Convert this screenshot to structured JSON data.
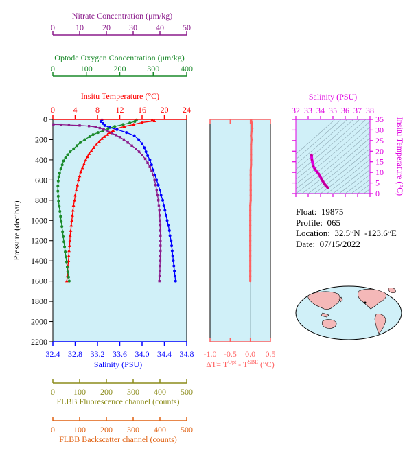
{
  "float_info": {
    "float": "Float:  19875",
    "profile": "Profile:  065",
    "location": "Location:  32.5°N  -123.6°E",
    "date": "Date:  07/15/2022"
  },
  "colors": {
    "nitrate": "#8b1a8b",
    "oxygen": "#1a8a2a",
    "temperature": "#ff0000",
    "salinity": "#0000ff",
    "fluorescence": "#8b8b1a",
    "backscatter": "#e06010",
    "delta_t": "#ff6060",
    "ts": "#e000e0",
    "plot_bg": "#d0f0f8"
  },
  "chart_data": [
    {
      "type": "line",
      "panel": "profile",
      "ylabel": "Pressure (decibar)",
      "ylim": [
        0,
        2200
      ],
      "yticks": [
        0,
        200,
        400,
        600,
        800,
        1000,
        1200,
        1400,
        1600,
        1800,
        2000,
        2200
      ],
      "axes": {
        "nitrate": {
          "label": "Nitrate Concentration (μm/kg)",
          "range": [
            0,
            50
          ],
          "ticks": [
            0,
            10,
            20,
            30,
            40,
            50
          ]
        },
        "oxygen": {
          "label": "Optode Oxygen Concentration (μm/kg)",
          "range": [
            0,
            400
          ],
          "ticks": [
            0,
            100,
            200,
            300,
            400
          ]
        },
        "temperature": {
          "label": "Insitu Temperature (°C)",
          "range": [
            0,
            24
          ],
          "ticks": [
            0,
            4,
            8,
            12,
            16,
            20,
            24
          ]
        },
        "salinity": {
          "label": "Salinity (PSU)",
          "range": [
            32.4,
            34.8
          ],
          "ticks": [
            "32.4",
            "32.8",
            "33.2",
            "33.6",
            "34.0",
            "34.4",
            "34.8"
          ]
        },
        "fluorescence": {
          "label": "FLBB Fluorescence channel (counts)",
          "range": [
            0,
            500
          ],
          "ticks": [
            0,
            100,
            200,
            300,
            400,
            500
          ]
        },
        "backscatter": {
          "label": "FLBB Backscatter channel (counts)",
          "range": [
            0,
            500
          ],
          "ticks": [
            0,
            100,
            200,
            300,
            400,
            500
          ]
        }
      },
      "series": [
        {
          "key": "temperature",
          "marker": "triangle",
          "points": [
            [
              17.8,
              5
            ],
            [
              18.2,
              15
            ],
            [
              16.0,
              30
            ],
            [
              14.5,
              50
            ],
            [
              12.8,
              70
            ],
            [
              11.5,
              90
            ],
            [
              10.8,
              110
            ],
            [
              10.2,
              130
            ],
            [
              9.8,
              150
            ],
            [
              9.2,
              170
            ],
            [
              8.8,
              190
            ],
            [
              8.3,
              220
            ],
            [
              7.8,
              250
            ],
            [
              7.3,
              280
            ],
            [
              6.9,
              310
            ],
            [
              6.5,
              340
            ],
            [
              6.2,
              370
            ],
            [
              5.9,
              400
            ],
            [
              5.6,
              440
            ],
            [
              5.3,
              480
            ],
            [
              5.0,
              520
            ],
            [
              4.8,
              560
            ],
            [
              4.6,
              600
            ],
            [
              4.4,
              650
            ],
            [
              4.2,
              700
            ],
            [
              4.0,
              750
            ],
            [
              3.9,
              800
            ],
            [
              3.7,
              850
            ],
            [
              3.6,
              900
            ],
            [
              3.5,
              950
            ],
            [
              3.4,
              1000
            ],
            [
              3.3,
              1050
            ],
            [
              3.2,
              1100
            ],
            [
              3.1,
              1150
            ],
            [
              3.05,
              1200
            ],
            [
              3.0,
              1250
            ],
            [
              2.9,
              1300
            ],
            [
              2.85,
              1350
            ],
            [
              2.8,
              1400
            ],
            [
              2.7,
              1450
            ],
            [
              2.65,
              1500
            ],
            [
              2.6,
              1550
            ],
            [
              2.5,
              1600
            ]
          ]
        },
        {
          "key": "salinity",
          "marker": "circle",
          "points": [
            [
              33.28,
              5
            ],
            [
              33.26,
              20
            ],
            [
              33.3,
              40
            ],
            [
              33.33,
              60
            ],
            [
              33.42,
              80
            ],
            [
              33.55,
              100
            ],
            [
              33.72,
              130
            ],
            [
              33.86,
              160
            ],
            [
              33.94,
              200
            ],
            [
              34.0,
              240
            ],
            [
              34.04,
              280
            ],
            [
              34.07,
              320
            ],
            [
              34.1,
              360
            ],
            [
              34.14,
              400
            ],
            [
              34.17,
              450
            ],
            [
              34.2,
              500
            ],
            [
              34.23,
              550
            ],
            [
              34.26,
              600
            ],
            [
              34.29,
              650
            ],
            [
              34.32,
              700
            ],
            [
              34.34,
              750
            ],
            [
              34.37,
              800
            ],
            [
              34.39,
              850
            ],
            [
              34.41,
              900
            ],
            [
              34.43,
              950
            ],
            [
              34.45,
              1000
            ],
            [
              34.47,
              1050
            ],
            [
              34.49,
              1100
            ],
            [
              34.5,
              1150
            ],
            [
              34.52,
              1200
            ],
            [
              34.53,
              1250
            ],
            [
              34.54,
              1300
            ],
            [
              34.55,
              1350
            ],
            [
              34.56,
              1400
            ],
            [
              34.57,
              1450
            ],
            [
              34.58,
              1500
            ],
            [
              34.59,
              1550
            ],
            [
              34.6,
              1600
            ]
          ]
        },
        {
          "key": "oxygen",
          "marker": "circle",
          "points": [
            [
              250,
              5
            ],
            [
              245,
              20
            ],
            [
              230,
              35
            ],
            [
              210,
              50
            ],
            [
              185,
              70
            ],
            [
              165,
              90
            ],
            [
              150,
              110
            ],
            [
              135,
              130
            ],
            [
              120,
              150
            ],
            [
              110,
              170
            ],
            [
              95,
              200
            ],
            [
              82,
              230
            ],
            [
              72,
              260
            ],
            [
              62,
              290
            ],
            [
              52,
              320
            ],
            [
              44,
              350
            ],
            [
              38,
              380
            ],
            [
              32,
              410
            ],
            [
              28,
              450
            ],
            [
              24,
              490
            ],
            [
              20,
              530
            ],
            [
              18,
              570
            ],
            [
              16,
              610
            ],
            [
              15,
              660
            ],
            [
              15,
              710
            ],
            [
              16,
              760
            ],
            [
              17,
              810
            ],
            [
              19,
              860
            ],
            [
              21,
              910
            ],
            [
              23,
              960
            ],
            [
              25,
              1010
            ],
            [
              27,
              1060
            ],
            [
              29,
              1110
            ],
            [
              31,
              1160
            ],
            [
              33,
              1210
            ],
            [
              35,
              1260
            ],
            [
              37,
              1310
            ],
            [
              39,
              1360
            ],
            [
              41,
              1410
            ],
            [
              43,
              1460
            ],
            [
              45,
              1510
            ],
            [
              47,
              1560
            ],
            [
              49,
              1600
            ]
          ]
        },
        {
          "key": "nitrate",
          "marker": "square",
          "points": [
            [
              0.2,
              50
            ],
            [
              3.0,
              52
            ],
            [
              6.0,
              55
            ],
            [
              10.0,
              60
            ],
            [
              13.5,
              66
            ],
            [
              16.0,
              75
            ],
            [
              17.5,
              85
            ],
            [
              19.0,
              100
            ],
            [
              20.5,
              115
            ],
            [
              22.0,
              135
            ],
            [
              23.5,
              155
            ],
            [
              25.0,
              175
            ],
            [
              26.5,
              200
            ],
            [
              28.0,
              230
            ],
            [
              29.5,
              260
            ],
            [
              31.0,
              290
            ],
            [
              32.2,
              320
            ],
            [
              33.4,
              355
            ],
            [
              34.5,
              390
            ],
            [
              35.4,
              430
            ],
            [
              36.2,
              470
            ],
            [
              36.9,
              510
            ],
            [
              37.5,
              550
            ],
            [
              38.0,
              600
            ],
            [
              38.4,
              650
            ],
            [
              38.8,
              700
            ],
            [
              39.1,
              750
            ],
            [
              39.4,
              800
            ],
            [
              39.6,
              850
            ],
            [
              39.8,
              900
            ],
            [
              39.9,
              950
            ],
            [
              40.0,
              1000
            ],
            [
              40.1,
              1050
            ],
            [
              40.1,
              1100
            ],
            [
              40.2,
              1150
            ],
            [
              40.2,
              1200
            ],
            [
              40.2,
              1250
            ],
            [
              40.2,
              1300
            ],
            [
              40.1,
              1350
            ],
            [
              40.1,
              1400
            ],
            [
              40.0,
              1450
            ],
            [
              40.0,
              1500
            ],
            [
              39.9,
              1550
            ],
            [
              39.8,
              1600
            ]
          ]
        }
      ]
    },
    {
      "type": "scatter",
      "panel": "delta_t",
      "xlabel": "ΔT= T^Opt - T^SBE (°C)",
      "xlim": [
        -1.0,
        0.5
      ],
      "xticks": [
        "-1.0",
        "-0.5",
        "0.0",
        "0.5"
      ],
      "ylim": [
        0,
        2200
      ],
      "points": [
        [
          0.02,
          5
        ],
        [
          0.03,
          30
        ],
        [
          0.04,
          60
        ],
        [
          0.05,
          90
        ],
        [
          0.03,
          120
        ],
        [
          0.02,
          160
        ],
        [
          0.03,
          200
        ],
        [
          0.02,
          250
        ],
        [
          0.02,
          300
        ],
        [
          0.02,
          350
        ],
        [
          0.02,
          400
        ],
        [
          0.02,
          450
        ],
        [
          0.01,
          500
        ],
        [
          0.01,
          550
        ],
        [
          0.01,
          600
        ],
        [
          0.01,
          650
        ],
        [
          0.01,
          700
        ],
        [
          0.01,
          750
        ],
        [
          0.01,
          800
        ],
        [
          0.0,
          850
        ],
        [
          0.0,
          900
        ],
        [
          0.0,
          950
        ],
        [
          0.0,
          1000
        ],
        [
          0.0,
          1050
        ],
        [
          0.0,
          1100
        ],
        [
          0.0,
          1150
        ],
        [
          0.0,
          1200
        ],
        [
          0.0,
          1250
        ],
        [
          0.0,
          1300
        ],
        [
          0.0,
          1350
        ],
        [
          0.0,
          1400
        ],
        [
          0.0,
          1450
        ],
        [
          0.0,
          1500
        ],
        [
          0.0,
          1550
        ],
        [
          0.0,
          1600
        ]
      ]
    },
    {
      "type": "line",
      "panel": "ts",
      "xlabel": "Salinity (PSU)",
      "ylabel": "Insitu Temperature (°C)",
      "xlim": [
        32,
        38
      ],
      "ylim": [
        0,
        35
      ],
      "xticks": [
        32,
        33,
        34,
        35,
        36,
        37,
        38
      ],
      "yticks": [
        0,
        5,
        10,
        15,
        20,
        25,
        30,
        35
      ],
      "points": [
        [
          33.3,
          17.8
        ],
        [
          33.26,
          18.2
        ],
        [
          33.3,
          16.0
        ],
        [
          33.42,
          12.8
        ],
        [
          33.55,
          11.5
        ],
        [
          33.72,
          10.2
        ],
        [
          33.86,
          9.2
        ],
        [
          33.94,
          8.3
        ],
        [
          34.04,
          7.3
        ],
        [
          34.1,
          6.5
        ],
        [
          34.17,
          5.9
        ],
        [
          34.23,
          5.3
        ],
        [
          34.29,
          4.8
        ],
        [
          34.34,
          4.4
        ],
        [
          34.39,
          4.0
        ],
        [
          34.43,
          3.7
        ],
        [
          34.47,
          3.5
        ],
        [
          34.5,
          3.3
        ],
        [
          34.53,
          3.1
        ],
        [
          34.56,
          2.9
        ],
        [
          34.58,
          2.7
        ],
        [
          34.6,
          2.5
        ]
      ]
    }
  ]
}
